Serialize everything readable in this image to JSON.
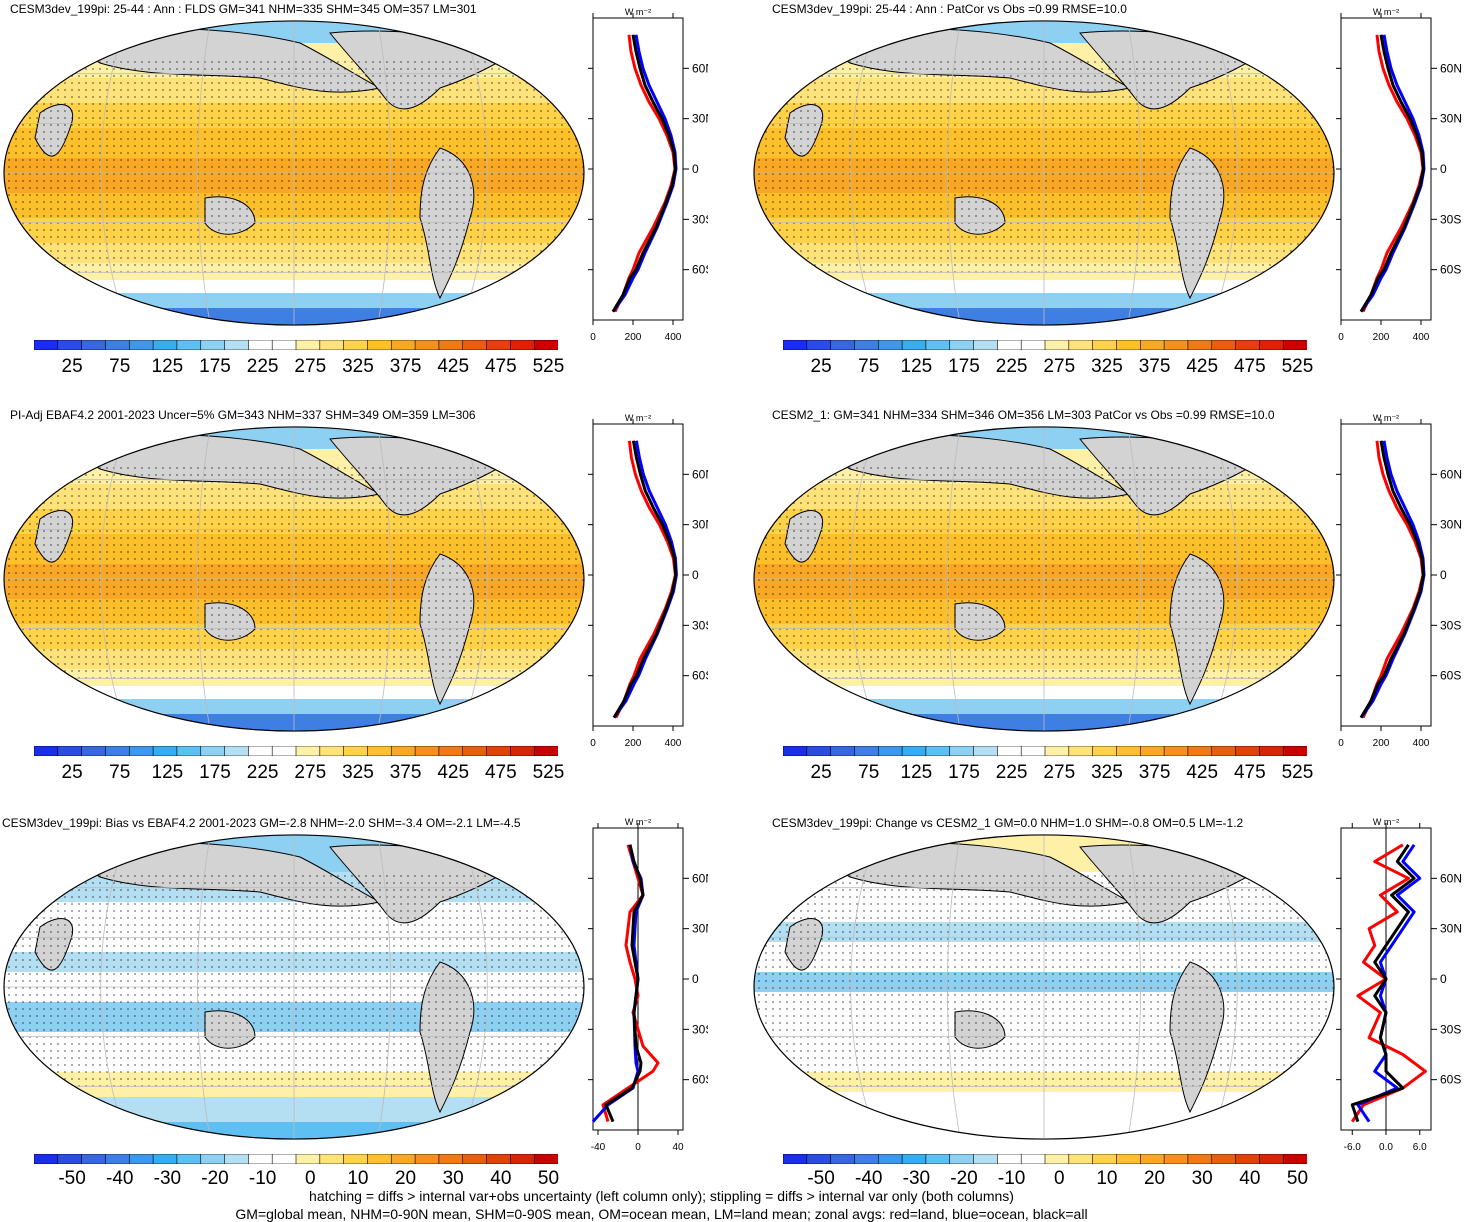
{
  "colors": {
    "abs_palette": [
      "#1a2cf0",
      "#2c4ce6",
      "#3866de",
      "#3f7fe3",
      "#3e97ea",
      "#37acef",
      "#5ec0f2",
      "#8dd0f2",
      "#b4def2",
      "#ffffff",
      "#ffffff",
      "#fff0a8",
      "#ffe27a",
      "#ffd24a",
      "#fdbf2a",
      "#f9a825",
      "#f5901d",
      "#ef7a15",
      "#ea5e0f",
      "#e4400c",
      "#dd2208",
      "#cc0000"
    ],
    "diff_palette": [
      "#1a2cf0",
      "#2c4ce6",
      "#3866de",
      "#3f7fe3",
      "#3e97ea",
      "#37acef",
      "#5ec0f2",
      "#8dd0f2",
      "#b4def2",
      "#ffffff",
      "#ffffff",
      "#fff0a8",
      "#ffe27a",
      "#ffd24a",
      "#fdbf2a",
      "#f9a825",
      "#f5901d",
      "#ef7a15",
      "#ea5e0f",
      "#e4400c",
      "#dd2208",
      "#cc0000"
    ],
    "land": "#d3d3d3",
    "zonal_land": "#ff0000",
    "zonal_ocean": "#0000ff",
    "zonal_all": "#000000"
  },
  "panels": [
    {
      "title": "CESM3dev_199pi: 25-44 : Ann : FLDS GM=341 NHM=335 SHM=345 OM=357 LM=301",
      "kind": "abs",
      "cbar_labels": [
        "25",
        "75",
        "125",
        "175",
        "225",
        "275",
        "325",
        "375",
        "425",
        "475",
        "525"
      ],
      "zonal_xticks": [
        "0",
        "200",
        "400"
      ],
      "zonal_yticks": [
        "60N",
        "30N",
        "0",
        "30S",
        "60S"
      ],
      "zonal_units": "W m⁻²"
    },
    {
      "title": "CESM3dev_199pi: 25-44 : Ann : PatCor vs Obs =0.99 RMSE=10.0",
      "kind": "abs",
      "cbar_labels": [
        "25",
        "75",
        "125",
        "175",
        "225",
        "275",
        "325",
        "375",
        "425",
        "475",
        "525"
      ],
      "zonal_xticks": [
        "0",
        "200",
        "400"
      ],
      "zonal_yticks": [
        "60N",
        "30N",
        "0",
        "30S",
        "60S"
      ],
      "zonal_units": "W m⁻²"
    },
    {
      "title": "PI-Adj EBAF4.2 2001-2023 Uncer=5% GM=343 NHM=337 SHM=349 OM=359 LM=306",
      "kind": "abs",
      "cbar_labels": [
        "25",
        "75",
        "125",
        "175",
        "225",
        "275",
        "325",
        "375",
        "425",
        "475",
        "525"
      ],
      "zonal_xticks": [
        "0",
        "200",
        "400"
      ],
      "zonal_yticks": [
        "60N",
        "30N",
        "0",
        "30S",
        "60S"
      ],
      "zonal_units": "W m⁻²"
    },
    {
      "title": "CESM2_1: GM=341 NHM=334 SHM=346 OM=356 LM=303 PatCor vs Obs =0.99 RMSE=10.0",
      "kind": "abs",
      "cbar_labels": [
        "25",
        "75",
        "125",
        "175",
        "225",
        "275",
        "325",
        "375",
        "425",
        "475",
        "525"
      ],
      "zonal_xticks": [
        "0",
        "200",
        "400"
      ],
      "zonal_yticks": [
        "60N",
        "30N",
        "0",
        "30S",
        "60S"
      ],
      "zonal_units": "W m⁻²"
    },
    {
      "title": "CESM3dev_199pi: Bias vs EBAF4.2 2001-2023 GM=-2.8 NHM=-2.0 SHM=-3.4 OM=-2.1 LM=-4.5",
      "kind": "diff",
      "cbar_labels": [
        "-50",
        "-40",
        "-30",
        "-20",
        "-10",
        "0",
        "10",
        "20",
        "30",
        "40",
        "50"
      ],
      "zonal_xticks": [
        "-40",
        "0",
        "40"
      ],
      "zonal_yticks": [
        "60N",
        "30N",
        "0",
        "30S",
        "60S"
      ],
      "zonal_units": "W m⁻²"
    },
    {
      "title": "CESM3dev_199pi: Change vs CESM2_1 GM=0.0 NHM=1.0 SHM=-0.8 OM=0.5 LM=-1.2",
      "kind": "diff2",
      "cbar_labels": [
        "-50",
        "-40",
        "-30",
        "-20",
        "-10",
        "0",
        "10",
        "20",
        "30",
        "40",
        "50"
      ],
      "zonal_xticks": [
        "-6.0",
        "0.0",
        "6.0"
      ],
      "zonal_yticks": [
        "60N",
        "30N",
        "0",
        "30S",
        "60S"
      ],
      "zonal_units": "W m⁻²"
    }
  ],
  "footer": {
    "line1": "hatching = diffs > internal var+obs uncertainty (left column only); stippling = diffs > internal var only (both columns)",
    "line2": "GM=global mean, NHM=0-90N mean, SHM=0-90S mean, OM=ocean mean, LM=land mean; zonal avgs: red=land, blue=ocean, black=all"
  },
  "chart_data": [
    {
      "type": "line",
      "title": "CESM3dev_199pi: 25-44 : Ann : FLDS GM=341 NHM=335 SHM=345 OM=357 LM=301",
      "xlim": [
        0,
        450
      ],
      "ylim": [
        -90,
        90
      ],
      "series": [
        {
          "name": "land",
          "x": [
            110,
            150,
            180,
            200,
            230,
            300,
            360,
            390,
            410,
            400,
            370,
            330,
            280,
            240,
            210,
            190,
            180
          ],
          "y": [
            -85,
            -75,
            -65,
            -60,
            -50,
            -35,
            -20,
            -10,
            0,
            10,
            20,
            30,
            40,
            50,
            60,
            70,
            80
          ]
        },
        {
          "name": "ocean",
          "x": [
            100,
            160,
            200,
            225,
            260,
            320,
            370,
            400,
            415,
            410,
            390,
            360,
            320,
            280,
            250,
            230,
            215
          ],
          "y": [
            -85,
            -75,
            -65,
            -60,
            -50,
            -35,
            -20,
            -10,
            0,
            10,
            20,
            30,
            40,
            50,
            60,
            70,
            80
          ]
        },
        {
          "name": "all",
          "x": [
            100,
            150,
            185,
            215,
            250,
            315,
            365,
            395,
            412,
            405,
            380,
            345,
            300,
            260,
            235,
            215,
            200
          ],
          "y": [
            -85,
            -75,
            -65,
            -60,
            -50,
            -35,
            -20,
            -10,
            0,
            10,
            20,
            30,
            40,
            50,
            60,
            70,
            80
          ]
        }
      ]
    },
    {
      "type": "line",
      "title": "CESM3dev_199pi: 25-44 : Ann : PatCor vs Obs =0.99 RMSE=10.0",
      "xlim": [
        0,
        450
      ],
      "ylim": [
        -90,
        90
      ],
      "series": [
        {
          "name": "land",
          "x": [
            110,
            150,
            180,
            200,
            230,
            300,
            360,
            390,
            410,
            400,
            370,
            330,
            280,
            240,
            210,
            190,
            180
          ],
          "y": [
            -85,
            -75,
            -65,
            -60,
            -50,
            -35,
            -20,
            -10,
            0,
            10,
            20,
            30,
            40,
            50,
            60,
            70,
            80
          ]
        },
        {
          "name": "ocean",
          "x": [
            100,
            160,
            200,
            225,
            260,
            320,
            370,
            400,
            415,
            410,
            390,
            360,
            320,
            280,
            250,
            230,
            215
          ],
          "y": [
            -85,
            -75,
            -65,
            -60,
            -50,
            -35,
            -20,
            -10,
            0,
            10,
            20,
            30,
            40,
            50,
            60,
            70,
            80
          ]
        },
        {
          "name": "all",
          "x": [
            100,
            150,
            185,
            215,
            250,
            315,
            365,
            395,
            412,
            405,
            380,
            345,
            300,
            260,
            235,
            215,
            200
          ],
          "y": [
            -85,
            -75,
            -65,
            -60,
            -50,
            -35,
            -20,
            -10,
            0,
            10,
            20,
            30,
            40,
            50,
            60,
            70,
            80
          ]
        }
      ]
    },
    {
      "type": "line",
      "title": "PI-Adj EBAF4.2 2001-2023 Uncer=5% GM=343 NHM=337 SHM=349 OM=359 LM=306",
      "xlim": [
        0,
        450
      ],
      "ylim": [
        -90,
        90
      ],
      "series": [
        {
          "name": "land",
          "x": [
            115,
            155,
            185,
            205,
            235,
            305,
            362,
            392,
            412,
            402,
            372,
            332,
            282,
            242,
            212,
            192,
            182
          ],
          "y": [
            -85,
            -75,
            -65,
            -60,
            -50,
            -35,
            -20,
            -10,
            0,
            10,
            20,
            30,
            40,
            50,
            60,
            70,
            80
          ]
        },
        {
          "name": "ocean",
          "x": [
            105,
            165,
            205,
            228,
            262,
            322,
            372,
            402,
            417,
            412,
            392,
            362,
            322,
            282,
            252,
            232,
            217
          ],
          "y": [
            -85,
            -75,
            -65,
            -60,
            -50,
            -35,
            -20,
            -10,
            0,
            10,
            20,
            30,
            40,
            50,
            60,
            70,
            80
          ]
        },
        {
          "name": "all",
          "x": [
            105,
            155,
            190,
            218,
            252,
            318,
            367,
            397,
            414,
            407,
            382,
            347,
            302,
            262,
            237,
            217,
            202
          ],
          "y": [
            -85,
            -75,
            -65,
            -60,
            -50,
            -35,
            -20,
            -10,
            0,
            10,
            20,
            30,
            40,
            50,
            60,
            70,
            80
          ]
        }
      ]
    },
    {
      "type": "line",
      "title": "CESM2_1: GM=341 NHM=334 SHM=346 OM=356 LM=303 PatCor vs Obs =0.99 RMSE=10.0",
      "xlim": [
        0,
        450
      ],
      "ylim": [
        -90,
        90
      ],
      "series": [
        {
          "name": "land",
          "x": [
            110,
            150,
            180,
            200,
            230,
            300,
            360,
            390,
            410,
            400,
            370,
            330,
            280,
            240,
            210,
            190,
            180
          ],
          "y": [
            -85,
            -75,
            -65,
            -60,
            -50,
            -35,
            -20,
            -10,
            0,
            10,
            20,
            30,
            40,
            50,
            60,
            70,
            80
          ]
        },
        {
          "name": "ocean",
          "x": [
            100,
            160,
            200,
            225,
            260,
            320,
            370,
            400,
            415,
            410,
            390,
            360,
            320,
            280,
            250,
            230,
            215
          ],
          "y": [
            -85,
            -75,
            -65,
            -60,
            -50,
            -35,
            -20,
            -10,
            0,
            10,
            20,
            30,
            40,
            50,
            60,
            70,
            80
          ]
        },
        {
          "name": "all",
          "x": [
            100,
            150,
            185,
            215,
            250,
            315,
            365,
            395,
            412,
            405,
            380,
            345,
            300,
            260,
            235,
            215,
            200
          ],
          "y": [
            -85,
            -75,
            -65,
            -60,
            -50,
            -35,
            -20,
            -10,
            0,
            10,
            20,
            30,
            40,
            50,
            60,
            70,
            80
          ]
        }
      ]
    },
    {
      "type": "line",
      "title": "CESM3dev_199pi: Bias vs EBAF4.2 2001-2023 GM=-2.8 NHM=-2.0 SHM=-3.4 OM=-2.1 LM=-4.5",
      "xlim": [
        -45,
        45
      ],
      "ylim": [
        -90,
        90
      ],
      "series": [
        {
          "name": "land",
          "x": [
            -30,
            -35,
            -10,
            15,
            20,
            5,
            -5,
            0,
            -3,
            -8,
            -12,
            -10,
            -8,
            5,
            0,
            -5,
            -10
          ],
          "y": [
            -85,
            -75,
            -65,
            -55,
            -50,
            -40,
            -20,
            -10,
            0,
            10,
            20,
            30,
            40,
            50,
            60,
            70,
            80
          ]
        },
        {
          "name": "ocean",
          "x": [
            -45,
            -30,
            -5,
            0,
            -2,
            -3,
            -4,
            -2,
            0,
            -2,
            -4,
            -3,
            -2,
            5,
            3,
            -5,
            -8
          ],
          "y": [
            -85,
            -75,
            -65,
            -55,
            -50,
            -40,
            -20,
            -10,
            0,
            10,
            20,
            30,
            40,
            50,
            60,
            70,
            80
          ]
        },
        {
          "name": "all",
          "x": [
            -25,
            -32,
            -6,
            2,
            3,
            -2,
            -4,
            -2,
            0,
            -3,
            -6,
            -5,
            -4,
            5,
            2,
            -4,
            -8
          ],
          "y": [
            -85,
            -75,
            -65,
            -55,
            -50,
            -40,
            -20,
            -10,
            0,
            10,
            20,
            30,
            40,
            50,
            60,
            70,
            80
          ]
        }
      ]
    },
    {
      "type": "line",
      "title": "CESM3dev_199pi: Change vs CESM2_1 GM=0.0 NHM=1.0 SHM=-0.8 OM=0.5 LM=-1.2",
      "xlim": [
        -8,
        8
      ],
      "ylim": [
        -90,
        90
      ],
      "series": [
        {
          "name": "land",
          "x": [
            -6,
            -4,
            3,
            7,
            3,
            -3,
            -1,
            -5,
            0,
            -4,
            -2,
            -3,
            2,
            -1,
            4,
            -2,
            3
          ],
          "y": [
            -85,
            -75,
            -65,
            -55,
            -45,
            -35,
            -20,
            -10,
            0,
            10,
            20,
            30,
            40,
            50,
            60,
            70,
            80
          ]
        },
        {
          "name": "ocean",
          "x": [
            -3,
            -5,
            2,
            -2,
            0,
            -1,
            0,
            -1,
            0,
            -1,
            1,
            3,
            5,
            2,
            6,
            3,
            5
          ],
          "y": [
            -85,
            -75,
            -65,
            -55,
            -45,
            -35,
            -20,
            -10,
            0,
            10,
            20,
            30,
            40,
            50,
            60,
            70,
            80
          ]
        },
        {
          "name": "all",
          "x": [
            -5,
            -6,
            3,
            0,
            0,
            -1,
            0,
            -2,
            0,
            -2,
            0,
            2,
            4,
            1,
            5,
            2,
            4
          ],
          "y": [
            -85,
            -75,
            -65,
            -55,
            -45,
            -35,
            -20,
            -10,
            0,
            10,
            20,
            30,
            40,
            50,
            60,
            70,
            80
          ]
        }
      ]
    }
  ]
}
